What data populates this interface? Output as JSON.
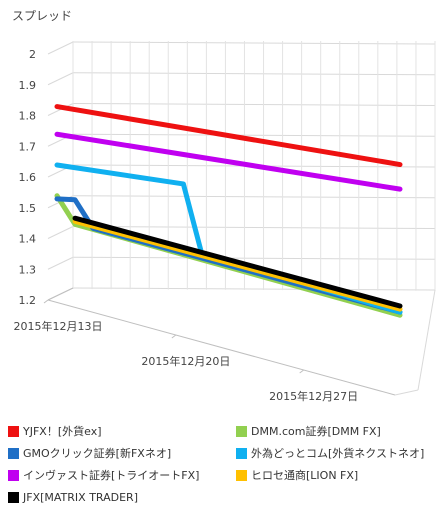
{
  "chart_data": {
    "type": "line",
    "ylabel": "スプレッド",
    "ylim": [
      1.2,
      2.0
    ],
    "yticks": [
      "1.2",
      "1.3",
      "1.4",
      "1.5",
      "1.6",
      "1.7",
      "1.8",
      "1.9",
      "2"
    ],
    "x_ticks": [
      "2015年12月13日",
      "2015年12月20日",
      "2015年12月27日"
    ],
    "x_tick_days": [
      0,
      7,
      14
    ],
    "x_range_days": [
      0,
      19
    ],
    "grid": true,
    "legend_position": "bottom",
    "series": [
      {
        "name": "YJFX！[外貨ex]",
        "color": "#ee1111",
        "points": [
          [
            0,
            1.79
          ],
          [
            19,
            1.66
          ]
        ]
      },
      {
        "name": "DMM.com証券[DMM FX]",
        "color": "#92d050",
        "points": [
          [
            0,
            1.5
          ],
          [
            1,
            1.41
          ],
          [
            19,
            1.17
          ]
        ]
      },
      {
        "name": "GMOクリック証券[新FXネオ]",
        "color": "#1f6fc6",
        "points": [
          [
            0,
            1.49
          ],
          [
            1,
            1.49
          ],
          [
            2,
            1.4
          ],
          [
            19,
            1.18
          ]
        ]
      },
      {
        "name": "外為どっとコム[外貨ネクストネオ]",
        "color": "#10b0f0",
        "points": [
          [
            0,
            1.6
          ],
          [
            7,
            1.56
          ],
          [
            8,
            1.34
          ],
          [
            19,
            1.18
          ]
        ]
      },
      {
        "name": "インヴァスト証券[トライオートFX]",
        "color": "#c000f0",
        "points": [
          [
            0,
            1.7
          ],
          [
            19,
            1.58
          ]
        ]
      },
      {
        "name": "ヒロセ通商[LION FX]",
        "color": "#ffc000",
        "points": [
          [
            1,
            1.42
          ],
          [
            19,
            1.19
          ]
        ]
      },
      {
        "name": "JFX[MATRIX TRADER]",
        "color": "#000000",
        "points": [
          [
            1,
            1.43
          ],
          [
            19,
            1.2
          ]
        ]
      }
    ]
  }
}
